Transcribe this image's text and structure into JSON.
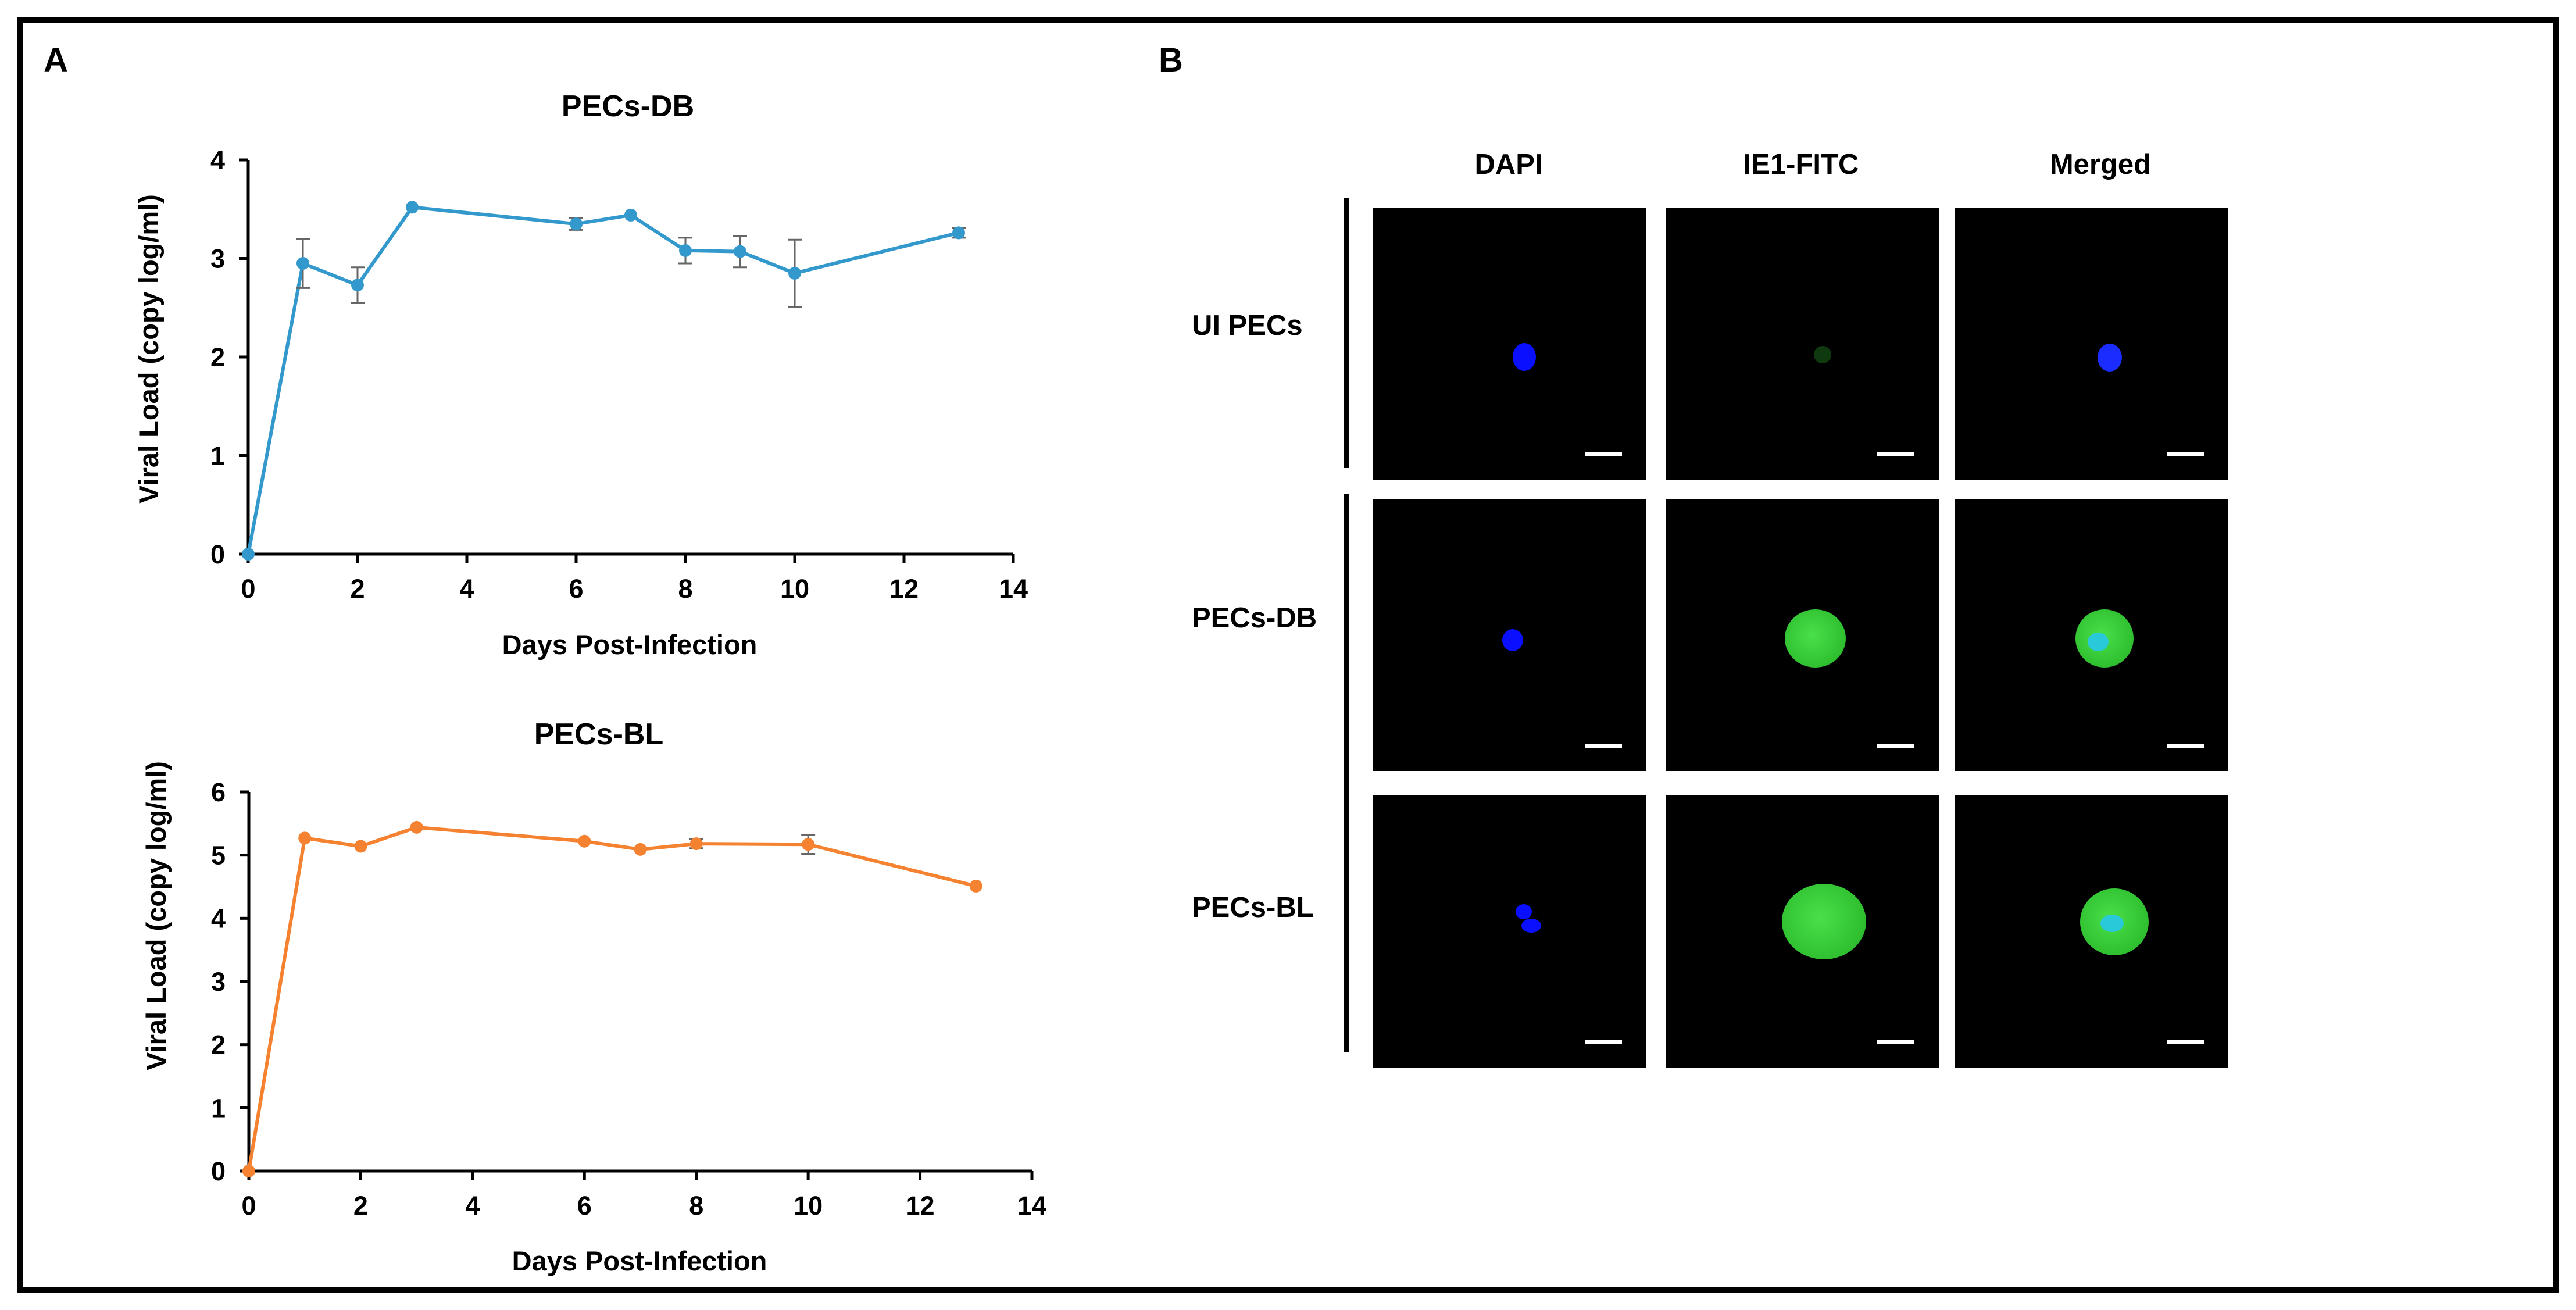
{
  "panel_a_label": "A",
  "panel_b_label": "B",
  "colors": {
    "db": "#3399cc",
    "bl": "#f58230",
    "dapi": "#0a10ff",
    "fitc": "#2fd12f"
  },
  "chart_data": [
    {
      "type": "line",
      "title": "PECs-DB",
      "xlabel": "Days Post-Infection",
      "ylabel": "Viral Load (copy log/ml)",
      "xlim": [
        0,
        14
      ],
      "ylim": [
        0,
        4
      ],
      "xticks": [
        "0",
        "2",
        "4",
        "6",
        "8",
        "10",
        "12",
        "14"
      ],
      "yticks": [
        "0",
        "1",
        "2",
        "3",
        "4"
      ],
      "series": [
        {
          "name": "PECs-DB",
          "x": [
            0,
            1,
            2,
            3,
            6,
            7,
            8,
            9,
            10,
            13
          ],
          "y": [
            0,
            2.95,
            2.73,
            3.52,
            3.35,
            3.44,
            3.08,
            3.07,
            2.85,
            3.26
          ],
          "err": [
            0,
            0.25,
            0.18,
            0,
            0.06,
            0,
            0.13,
            0.16,
            0.34,
            0.05
          ]
        }
      ]
    },
    {
      "type": "line",
      "title": "PECs-BL",
      "xlabel": "Days Post-Infection",
      "ylabel": "Viral Load (copy log/ml)",
      "xlim": [
        0,
        14
      ],
      "ylim": [
        0,
        6
      ],
      "xticks": [
        "0",
        "2",
        "4",
        "6",
        "8",
        "10",
        "12",
        "14"
      ],
      "yticks": [
        "0",
        "1",
        "2",
        "3",
        "4",
        "5",
        "6"
      ],
      "series": [
        {
          "name": "PECs-BL",
          "x": [
            0,
            1,
            2,
            3,
            6,
            7,
            8,
            10,
            13
          ],
          "y": [
            0,
            5.27,
            5.14,
            5.44,
            5.22,
            5.09,
            5.18,
            5.17,
            4.51
          ],
          "err": [
            0,
            0,
            0,
            0,
            0,
            0,
            0.07,
            0.15,
            0
          ]
        }
      ]
    }
  ],
  "microscopy": {
    "columns": [
      "DAPI",
      "IE1-FITC",
      "Merged"
    ],
    "rows": [
      "UI PECs",
      "PECs-DB",
      "PECs-BL"
    ]
  }
}
